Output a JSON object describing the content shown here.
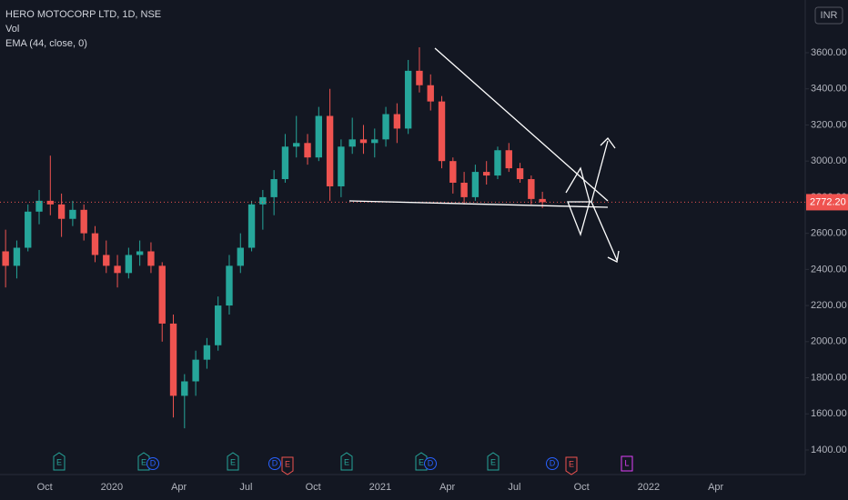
{
  "chart_data": {
    "type": "candlestick",
    "title": "HERO MOTOCORP LTD, 1D, NSE",
    "indicators": [
      "Vol",
      "EMA (44, close, 0)"
    ],
    "currency": "INR",
    "up_color": "#26a69a",
    "down_color": "#ef5350",
    "categories": [
      null,
      null,
      null,
      null,
      "Oct",
      null,
      null,
      null,
      null,
      null,
      "2020",
      null,
      null,
      null,
      null,
      null,
      "Apr",
      null,
      null,
      null,
      null,
      null,
      "Jul",
      null,
      null,
      null,
      null,
      null,
      "Oct",
      null,
      null,
      null,
      null,
      null,
      "2021",
      null,
      null,
      null,
      null,
      null,
      "Apr",
      null,
      null,
      null,
      null,
      null,
      "Jul",
      null,
      null,
      null,
      null,
      null,
      "Oct",
      null,
      null,
      null,
      null,
      null,
      "2022",
      null,
      null,
      null,
      null,
      null,
      "Apr",
      null,
      null,
      null,
      null,
      null,
      null,
      null
    ],
    "ohlc": [
      [
        2500,
        2620,
        2300,
        2420
      ],
      [
        2420,
        2560,
        2350,
        2520
      ],
      [
        2520,
        2760,
        2500,
        2720
      ],
      [
        2720,
        2840,
        2650,
        2780
      ],
      [
        2780,
        3030,
        2700,
        2760
      ],
      [
        2760,
        2820,
        2580,
        2680
      ],
      [
        2680,
        2780,
        2640,
        2730
      ],
      [
        2730,
        2760,
        2560,
        2600
      ],
      [
        2600,
        2640,
        2440,
        2480
      ],
      [
        2480,
        2560,
        2380,
        2420
      ],
      [
        2420,
        2480,
        2300,
        2380
      ],
      [
        2380,
        2520,
        2350,
        2480
      ],
      [
        2480,
        2560,
        2420,
        2500
      ],
      [
        2500,
        2550,
        2380,
        2420
      ],
      [
        2420,
        2440,
        2000,
        2100
      ],
      [
        2100,
        2150,
        1580,
        1700
      ],
      [
        1700,
        1820,
        1520,
        1780
      ],
      [
        1780,
        1950,
        1700,
        1900
      ],
      [
        1900,
        2020,
        1850,
        1980
      ],
      [
        1980,
        2250,
        1950,
        2200
      ],
      [
        2200,
        2480,
        2150,
        2420
      ],
      [
        2420,
        2600,
        2380,
        2520
      ],
      [
        2520,
        2780,
        2500,
        2760
      ],
      [
        2760,
        2840,
        2620,
        2800
      ],
      [
        2800,
        2950,
        2700,
        2900
      ],
      [
        2900,
        3150,
        2880,
        3080
      ],
      [
        3080,
        3250,
        3020,
        3100
      ],
      [
        3100,
        3150,
        2980,
        3020
      ],
      [
        3020,
        3300,
        3000,
        3250
      ],
      [
        3250,
        3400,
        2780,
        2860
      ],
      [
        2860,
        3120,
        2800,
        3080
      ],
      [
        3080,
        3240,
        3040,
        3120
      ],
      [
        3120,
        3200,
        3040,
        3100
      ],
      [
        3100,
        3180,
        3020,
        3120
      ],
      [
        3120,
        3300,
        3080,
        3260
      ],
      [
        3260,
        3320,
        3100,
        3180
      ],
      [
        3180,
        3560,
        3150,
        3500
      ],
      [
        3500,
        3630,
        3380,
        3420
      ],
      [
        3420,
        3480,
        3280,
        3330
      ],
      [
        3330,
        3360,
        2960,
        3000
      ],
      [
        3000,
        3020,
        2820,
        2880
      ],
      [
        2880,
        2940,
        2760,
        2800
      ],
      [
        2800,
        2980,
        2780,
        2940
      ],
      [
        2940,
        3000,
        2870,
        2920
      ],
      [
        2920,
        3080,
        2900,
        3060
      ],
      [
        3060,
        3100,
        2940,
        2960
      ],
      [
        2960,
        2990,
        2880,
        2900
      ],
      [
        2900,
        2920,
        2760,
        2790
      ],
      [
        2790,
        2830,
        2740,
        2772.2
      ],
      null,
      null,
      null,
      null,
      null,
      null,
      null,
      null,
      null,
      null,
      null,
      null,
      null,
      null,
      null,
      null,
      null,
      null,
      null,
      null,
      null,
      null,
      null
    ],
    "last_price": {
      "value": 2772.2,
      "label": "2772.20"
    },
    "ylim": [
      1274,
      3892
    ],
    "yticks": [
      {
        "value": 1400,
        "label": "1400.00"
      },
      {
        "value": 1600,
        "label": "1600.00"
      },
      {
        "value": 1800,
        "label": "1800.00"
      },
      {
        "value": 2000,
        "label": "2000.00"
      },
      {
        "value": 2200,
        "label": "2200.00"
      },
      {
        "value": 2400,
        "label": "2400.00"
      },
      {
        "value": 2600,
        "label": "2600.00"
      },
      {
        "value": 2800,
        "label": "2800.00"
      },
      {
        "value": 3000,
        "label": "3000.00"
      },
      {
        "value": 3200,
        "label": "3200.00"
      },
      {
        "value": 3400,
        "label": "3400.00"
      },
      {
        "value": 3600,
        "label": "3600.00"
      }
    ],
    "events": [
      "E",
      "E",
      "D",
      "E",
      "D",
      "E",
      "E",
      "E",
      "D",
      "E",
      "D",
      "E",
      "L"
    ]
  }
}
